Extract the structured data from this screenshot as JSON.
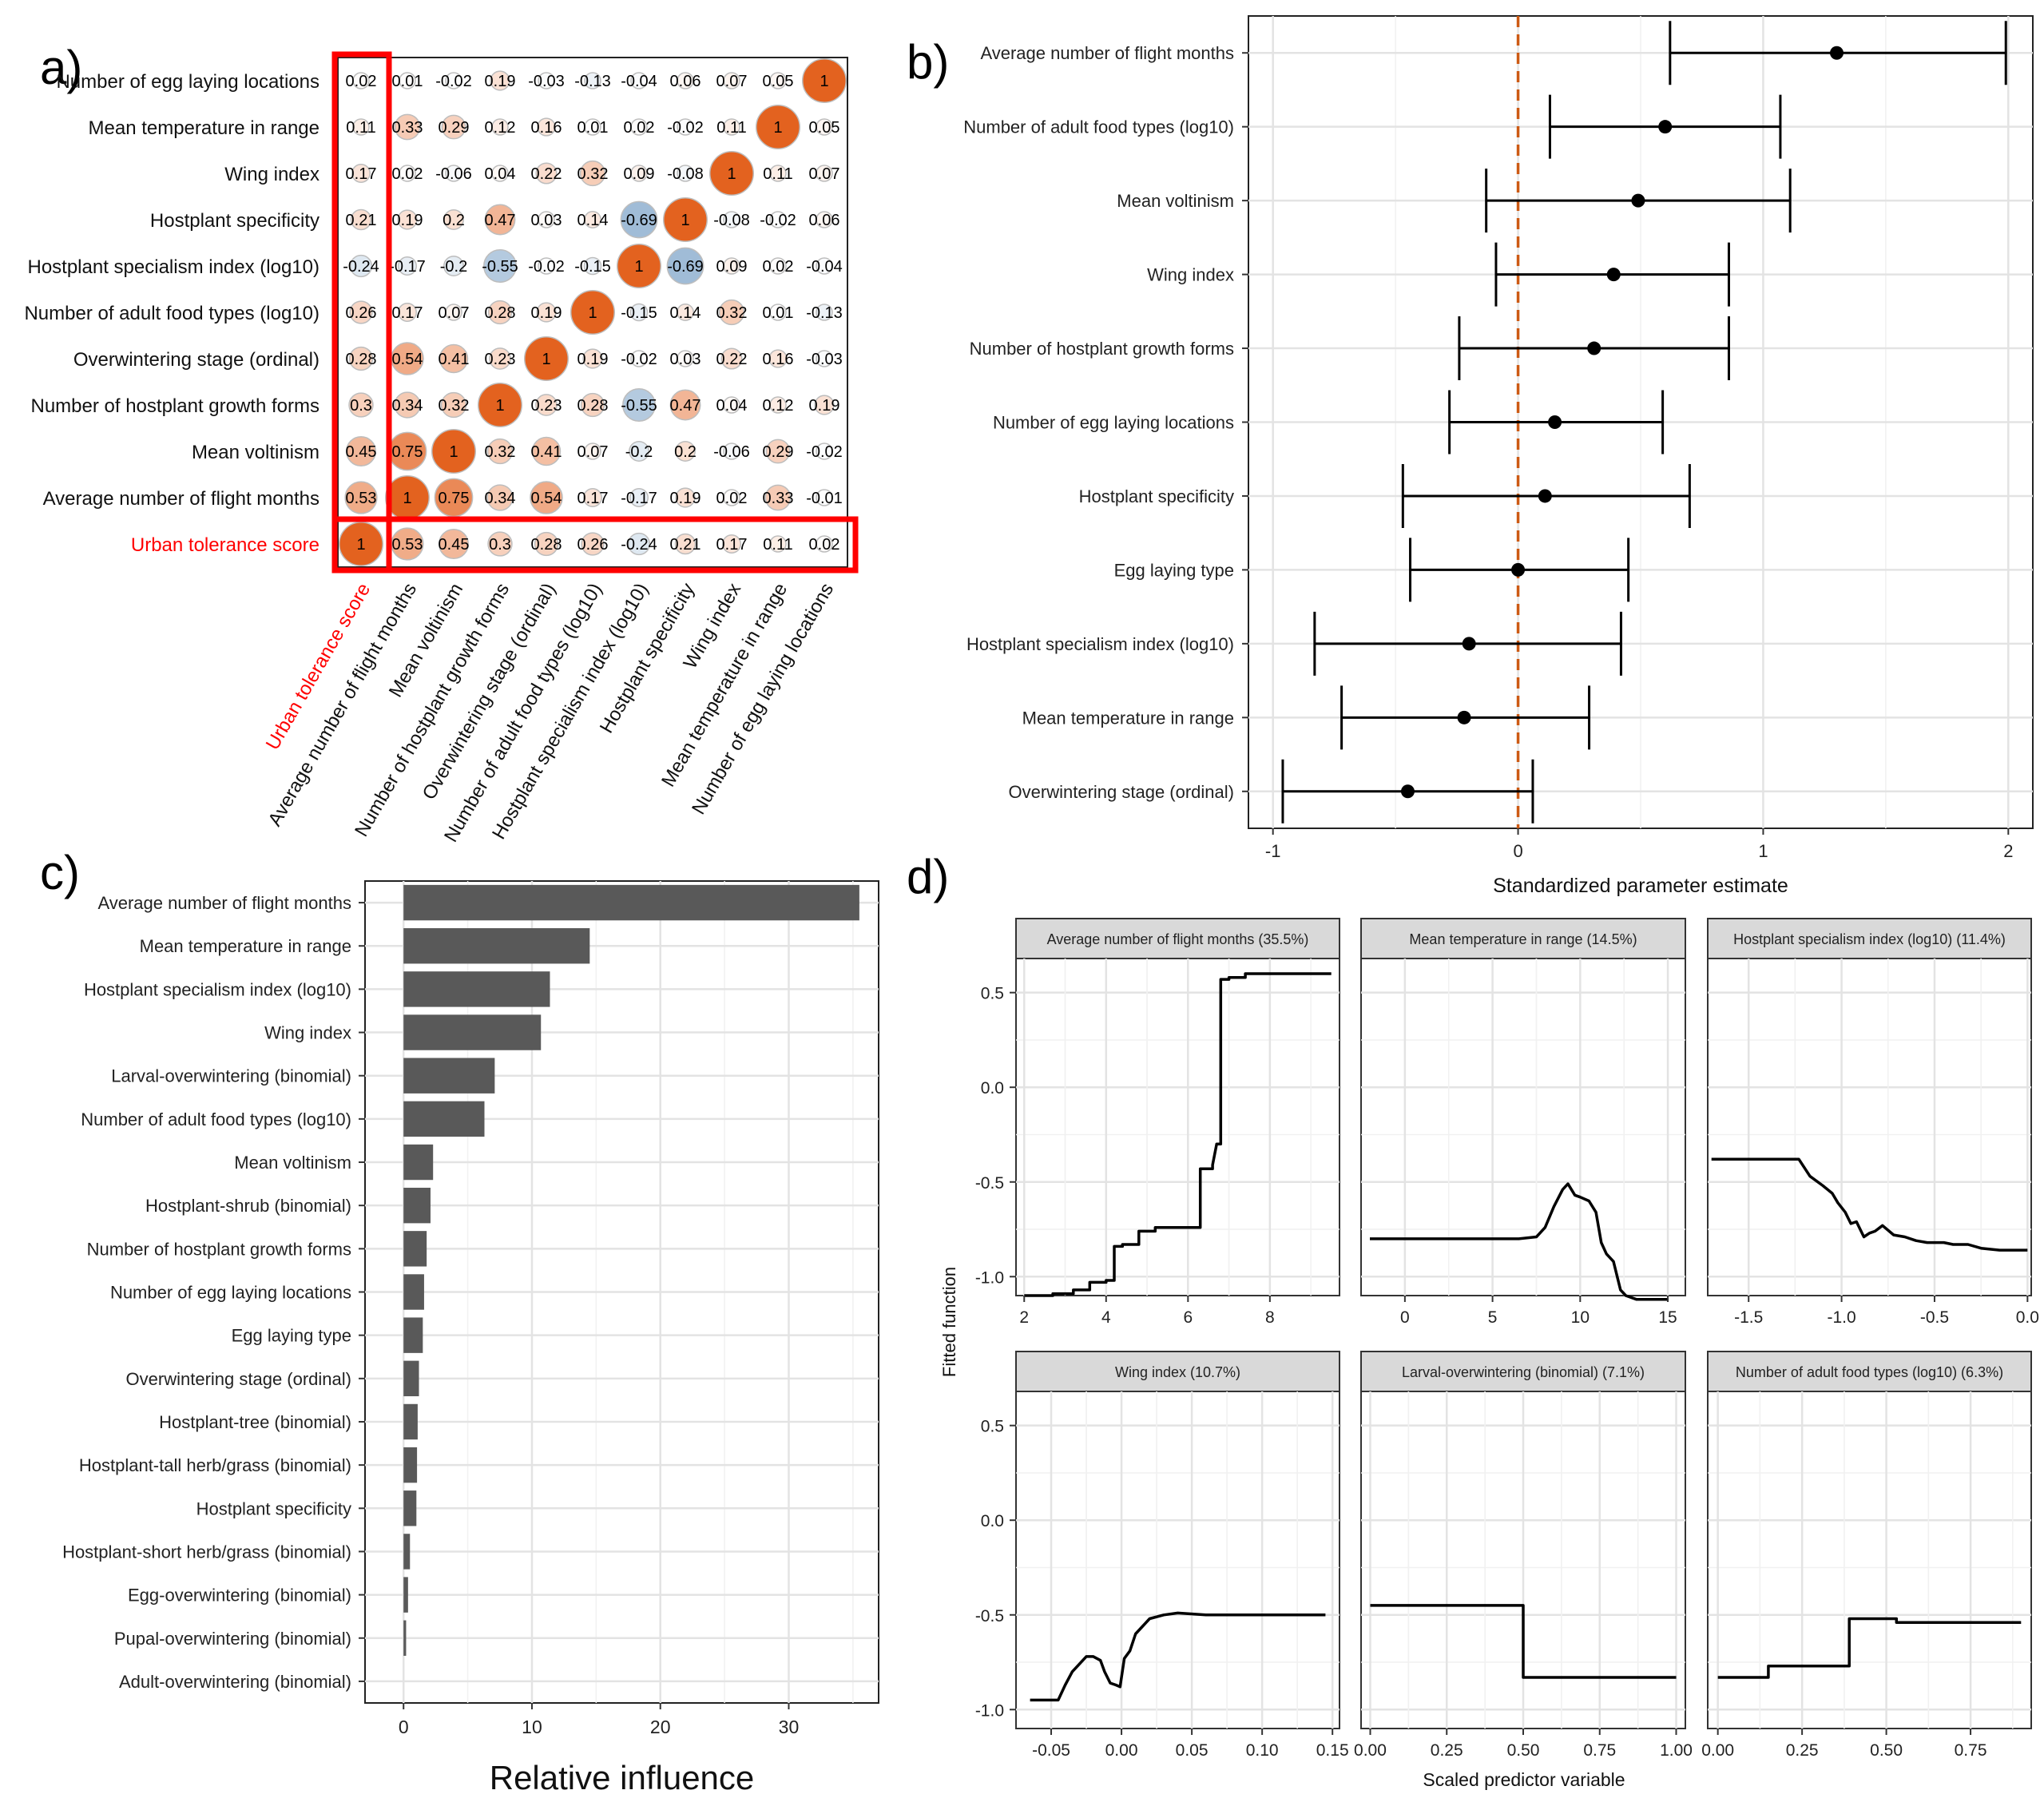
{
  "panel_labels": {
    "a": "a)",
    "b": "b)",
    "c": "c)",
    "d": "d)"
  },
  "colors": {
    "positive": "#e3621f",
    "negative": "#9fbbd6",
    "highlight": "#ff0000",
    "bar": "#595959",
    "zero_line": "#cc5a14",
    "strip": "#d9d9d9"
  },
  "chart_data": [
    {
      "panel": "a",
      "type": "heatmap",
      "variables": [
        "Urban tolerance score",
        "Average number of flight months",
        "Mean voltinism",
        "Number of hostplant growth forms",
        "Overwintering stage (ordinal)",
        "Number of adult food types (log10)",
        "Hostplant specialism index (log10)",
        "Hostplant specificity",
        "Wing index",
        "Mean temperature in range",
        "Number of egg laying locations"
      ],
      "highlight_label": "Urban tolerance score",
      "matrix": [
        [
          1,
          0.53,
          0.45,
          0.3,
          0.28,
          0.26,
          -0.24,
          0.21,
          0.17,
          0.11,
          0.02
        ],
        [
          0.53,
          1,
          0.75,
          0.34,
          0.54,
          0.17,
          -0.17,
          0.19,
          0.02,
          0.33,
          -0.01
        ],
        [
          0.45,
          0.75,
          1,
          0.32,
          0.41,
          0.07,
          -0.2,
          0.2,
          -0.06,
          0.29,
          -0.02
        ],
        [
          0.3,
          0.34,
          0.32,
          1,
          0.23,
          0.28,
          -0.55,
          0.47,
          0.04,
          0.12,
          0.19
        ],
        [
          0.28,
          0.54,
          0.41,
          0.23,
          1,
          0.19,
          -0.02,
          0.03,
          0.22,
          0.16,
          -0.03
        ],
        [
          0.26,
          0.17,
          0.07,
          0.28,
          0.19,
          1,
          -0.15,
          0.14,
          0.32,
          0.01,
          -0.13
        ],
        [
          -0.24,
          -0.17,
          -0.2,
          -0.55,
          -0.02,
          -0.15,
          1,
          -0.69,
          0.09,
          0.02,
          -0.04
        ],
        [
          0.21,
          0.19,
          0.2,
          0.47,
          0.03,
          0.14,
          -0.69,
          1,
          -0.08,
          -0.02,
          0.06
        ],
        [
          0.17,
          0.02,
          -0.06,
          0.04,
          0.22,
          0.32,
          0.09,
          -0.08,
          1,
          0.11,
          0.07
        ],
        [
          0.11,
          0.33,
          0.29,
          0.12,
          0.16,
          0.01,
          0.02,
          -0.02,
          0.11,
          1,
          0.05
        ],
        [
          0.02,
          0.01,
          -0.02,
          0.19,
          -0.03,
          -0.13,
          -0.04,
          0.06,
          0.07,
          0.05,
          1
        ]
      ]
    },
    {
      "panel": "b",
      "type": "scatter",
      "categories": [
        "Average number of flight months",
        "Number of adult food types (log10)",
        "Mean voltinism",
        "Wing index",
        "Number of hostplant growth forms",
        "Number of egg laying locations",
        "Hostplant specificity",
        "Egg laying type",
        "Hostplant specialism index (log10)",
        "Mean temperature in range",
        "Overwintering stage (ordinal)"
      ],
      "estimate": [
        1.3,
        0.6,
        0.49,
        0.39,
        0.31,
        0.15,
        0.11,
        0.0,
        -0.2,
        -0.22,
        -0.45
      ],
      "lower": [
        0.62,
        0.13,
        -0.13,
        -0.09,
        -0.24,
        -0.28,
        -0.47,
        -0.44,
        -0.83,
        -0.72,
        -0.96
      ],
      "upper": [
        1.99,
        1.07,
        1.11,
        0.86,
        0.86,
        0.59,
        0.7,
        0.45,
        0.42,
        0.29,
        0.06
      ],
      "xlim": [
        -1.1,
        2.1
      ],
      "xticks": [
        -1,
        0,
        1,
        2
      ],
      "xlabel": "Standardized parameter estimate"
    },
    {
      "panel": "c",
      "type": "bar",
      "categories": [
        "Average number of flight months",
        "Mean temperature in range",
        "Hostplant specialism index (log10)",
        "Wing index",
        "Larval-overwintering (binomial)",
        "Number of adult food types (log10)",
        "Mean voltinism",
        "Hostplant-shrub (binomial)",
        "Number of hostplant growth forms",
        "Number of egg laying locations",
        "Egg laying type",
        "Overwintering stage (ordinal)",
        "Hostplant-tree (binomial)",
        "Hostplant-tall herb/grass (binomial)",
        "Hostplant specificity",
        "Hostplant-short herb/grass (binomial)",
        "Egg-overwintering (binomial)",
        "Pupal-overwintering (binomial)",
        "Adult-overwintering (binomial)"
      ],
      "values": [
        35.5,
        14.5,
        11.4,
        10.7,
        7.1,
        6.3,
        2.3,
        2.1,
        1.8,
        1.6,
        1.5,
        1.2,
        1.1,
        1.05,
        1.0,
        0.5,
        0.35,
        0.2,
        0.0
      ],
      "xlim": [
        -3,
        37
      ],
      "xticks": [
        0,
        10,
        20,
        30
      ],
      "xlabel": "Relative influence"
    },
    {
      "panel": "d",
      "type": "line",
      "ylabel": "Fitted function",
      "xlabel": "Scaled predictor variable",
      "ylim": [
        -1.1,
        0.68
      ],
      "yticks": [
        -1.0,
        -0.5,
        0.0,
        0.5
      ],
      "ytick_labels": [
        "-1.0",
        "-0.5",
        "0.0",
        "0.5"
      ],
      "facets": [
        {
          "title": "Average number of flight months (35.5%)",
          "xlim": [
            1.8,
            9.7
          ],
          "xticks": [
            2,
            4,
            6,
            8
          ],
          "xtick_labels": [
            "2",
            "4",
            "6",
            "8"
          ],
          "x": [
            2,
            2.7,
            2.7,
            3.2,
            3.2,
            3.6,
            3.6,
            4.0,
            4.0,
            4.2,
            4.2,
            4.4,
            4.4,
            4.8,
            4.8,
            5.2,
            5.2,
            6.3,
            6.3,
            6.6,
            6.6,
            6.7,
            6.8,
            6.8,
            7.0,
            7.0,
            7.4,
            7.4,
            9.5
          ],
          "y": [
            -1.1,
            -1.1,
            -1.09,
            -1.09,
            -1.07,
            -1.07,
            -1.03,
            -1.03,
            -1.02,
            -1.02,
            -0.84,
            -0.84,
            -0.83,
            -0.83,
            -0.76,
            -0.76,
            -0.74,
            -0.74,
            -0.43,
            -0.43,
            -0.41,
            -0.3,
            -0.3,
            0.57,
            0.57,
            0.58,
            0.58,
            0.6,
            0.6
          ]
        },
        {
          "title": "Mean temperature in range (14.5%)",
          "xlim": [
            -2.5,
            16.0
          ],
          "xticks": [
            0,
            5,
            10,
            15
          ],
          "xtick_labels": [
            "0",
            "5",
            "10",
            "15"
          ],
          "x": [
            -2,
            6.5,
            7.5,
            8.0,
            8.5,
            9.0,
            9.3,
            9.7,
            10.0,
            10.5,
            10.9,
            11.2,
            11.5,
            11.9,
            12.3,
            12.6,
            13.2,
            15.0
          ],
          "y": [
            -0.8,
            -0.8,
            -0.79,
            -0.74,
            -0.63,
            -0.54,
            -0.51,
            -0.57,
            -0.58,
            -0.6,
            -0.66,
            -0.82,
            -0.88,
            -0.92,
            -1.07,
            -1.1,
            -1.12,
            -1.12
          ]
        },
        {
          "title": "Hostplant specialism index (log10)  (11.4%)",
          "xlim": [
            -1.72,
            0.02
          ],
          "xticks": [
            -1.5,
            -1.0,
            -0.5,
            0.0
          ],
          "xtick_labels": [
            "-1.5",
            "-1.0",
            "-0.5",
            "0.0"
          ],
          "x": [
            -1.7,
            -1.23,
            -1.17,
            -1.1,
            -1.05,
            -1.02,
            -0.98,
            -0.95,
            -0.92,
            -0.88,
            -0.85,
            -0.82,
            -0.78,
            -0.72,
            -0.66,
            -0.6,
            -0.54,
            -0.45,
            -0.4,
            -0.32,
            -0.25,
            -0.15,
            0.0
          ],
          "y": [
            -0.38,
            -0.38,
            -0.47,
            -0.52,
            -0.56,
            -0.61,
            -0.66,
            -0.72,
            -0.71,
            -0.79,
            -0.77,
            -0.76,
            -0.73,
            -0.78,
            -0.79,
            -0.81,
            -0.82,
            -0.82,
            -0.83,
            -0.83,
            -0.85,
            -0.86,
            -0.86
          ]
        },
        {
          "title": "Wing index (10.7%)",
          "xlim": [
            -0.075,
            0.155
          ],
          "xticks": [
            -0.05,
            0.0,
            0.05,
            0.1,
            0.15
          ],
          "xtick_labels": [
            "-0.05",
            "0.00",
            "0.05",
            "0.10",
            "0.15"
          ],
          "x": [
            -0.065,
            -0.045,
            -0.04,
            -0.035,
            -0.03,
            -0.025,
            -0.02,
            -0.015,
            -0.012,
            -0.008,
            -0.004,
            -0.001,
            0.002,
            0.006,
            0.01,
            0.015,
            0.02,
            0.03,
            0.04,
            0.06,
            0.08,
            0.1,
            0.12,
            0.145
          ],
          "y": [
            -0.95,
            -0.95,
            -0.87,
            -0.8,
            -0.76,
            -0.72,
            -0.72,
            -0.74,
            -0.8,
            -0.86,
            -0.87,
            -0.88,
            -0.73,
            -0.69,
            -0.6,
            -0.56,
            -0.52,
            -0.5,
            -0.49,
            -0.5,
            -0.5,
            -0.5,
            -0.5,
            -0.5
          ]
        },
        {
          "title": "Larval-overwintering (binomial) (7.1%)",
          "xlim": [
            -0.03,
            1.03
          ],
          "xticks": [
            0.0,
            0.25,
            0.5,
            0.75,
            1.0
          ],
          "xtick_labels": [
            "0.00",
            "0.25",
            "0.50",
            "0.75",
            "1.00"
          ],
          "x": [
            0.0,
            0.5,
            0.5,
            1.0
          ],
          "y": [
            -0.45,
            -0.45,
            -0.83,
            -0.83
          ]
        },
        {
          "title": "Number of adult food types (log10) (6.3%)",
          "xlim": [
            -0.03,
            0.93
          ],
          "xticks": [
            0.0,
            0.25,
            0.5,
            0.75
          ],
          "xtick_labels": [
            "0.00",
            "0.25",
            "0.50",
            "0.75"
          ],
          "x": [
            0.0,
            0.15,
            0.15,
            0.39,
            0.39,
            0.53,
            0.53,
            0.9
          ],
          "y": [
            -0.83,
            -0.83,
            -0.77,
            -0.77,
            -0.52,
            -0.52,
            -0.54,
            -0.54
          ]
        }
      ]
    }
  ]
}
